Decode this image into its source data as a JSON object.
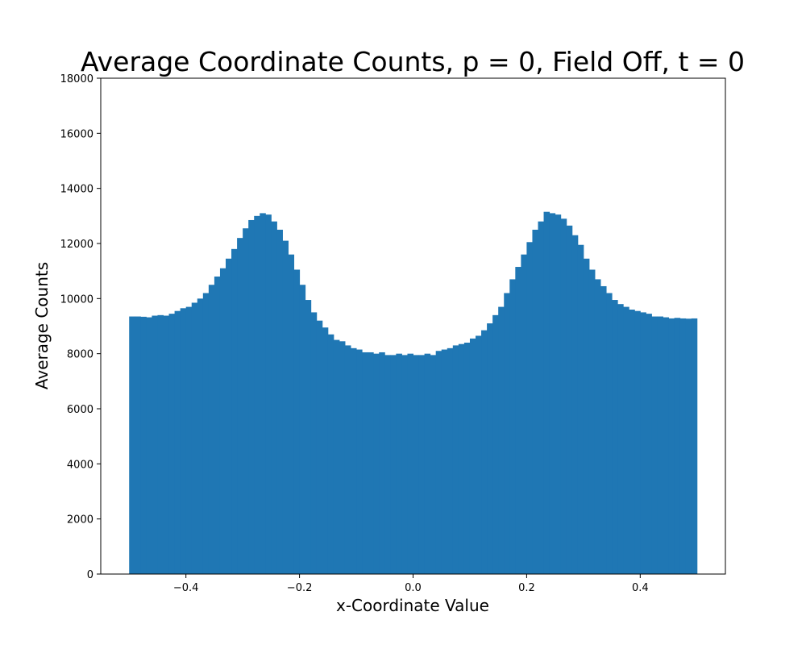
{
  "chart_data": {
    "type": "bar",
    "title": "Average Coordinate Counts, p = 0, Field Off, t = 0",
    "xlabel": "x-Coordinate Value",
    "ylabel": "Average Counts",
    "xlim": [
      -0.55,
      0.55
    ],
    "ylim": [
      0,
      18000
    ],
    "grid": false,
    "bar_color": "#1f77b4",
    "bin_range": [
      -0.5,
      0.5
    ],
    "bin_width": 0.01,
    "x_ticks": [
      -0.4,
      -0.2,
      0.0,
      0.2,
      0.4
    ],
    "x_tick_labels": [
      "−0.4",
      "−0.2",
      "0.0",
      "0.2",
      "0.4"
    ],
    "y_ticks": [
      0,
      2000,
      4000,
      6000,
      8000,
      10000,
      12000,
      14000,
      16000,
      18000
    ],
    "y_tick_labels": [
      "0",
      "2000",
      "4000",
      "6000",
      "8000",
      "10000",
      "12000",
      "14000",
      "16000",
      "18000"
    ],
    "values": [
      9350,
      9350,
      9340,
      9320,
      9380,
      9400,
      9380,
      9450,
      9550,
      9650,
      9700,
      9850,
      10000,
      10200,
      10500,
      10800,
      11100,
      11450,
      11800,
      12200,
      12550,
      12850,
      13000,
      13100,
      13050,
      12800,
      12500,
      12100,
      11600,
      11050,
      10500,
      9950,
      9500,
      9200,
      8950,
      8700,
      8500,
      8450,
      8300,
      8200,
      8150,
      8050,
      8050,
      8000,
      8050,
      7950,
      7950,
      8000,
      7950,
      8000,
      7950,
      7950,
      8000,
      7950,
      8100,
      8150,
      8200,
      8300,
      8350,
      8400,
      8550,
      8650,
      8850,
      9100,
      9400,
      9700,
      10200,
      10700,
      11150,
      11600,
      12050,
      12500,
      12800,
      13150,
      13100,
      13050,
      12900,
      12650,
      12300,
      11950,
      11450,
      11050,
      10700,
      10450,
      10200,
      9950,
      9800,
      9700,
      9600,
      9550,
      9500,
      9450,
      9350,
      9350,
      9320,
      9280,
      9300,
      9280,
      9270,
      9280
    ]
  }
}
